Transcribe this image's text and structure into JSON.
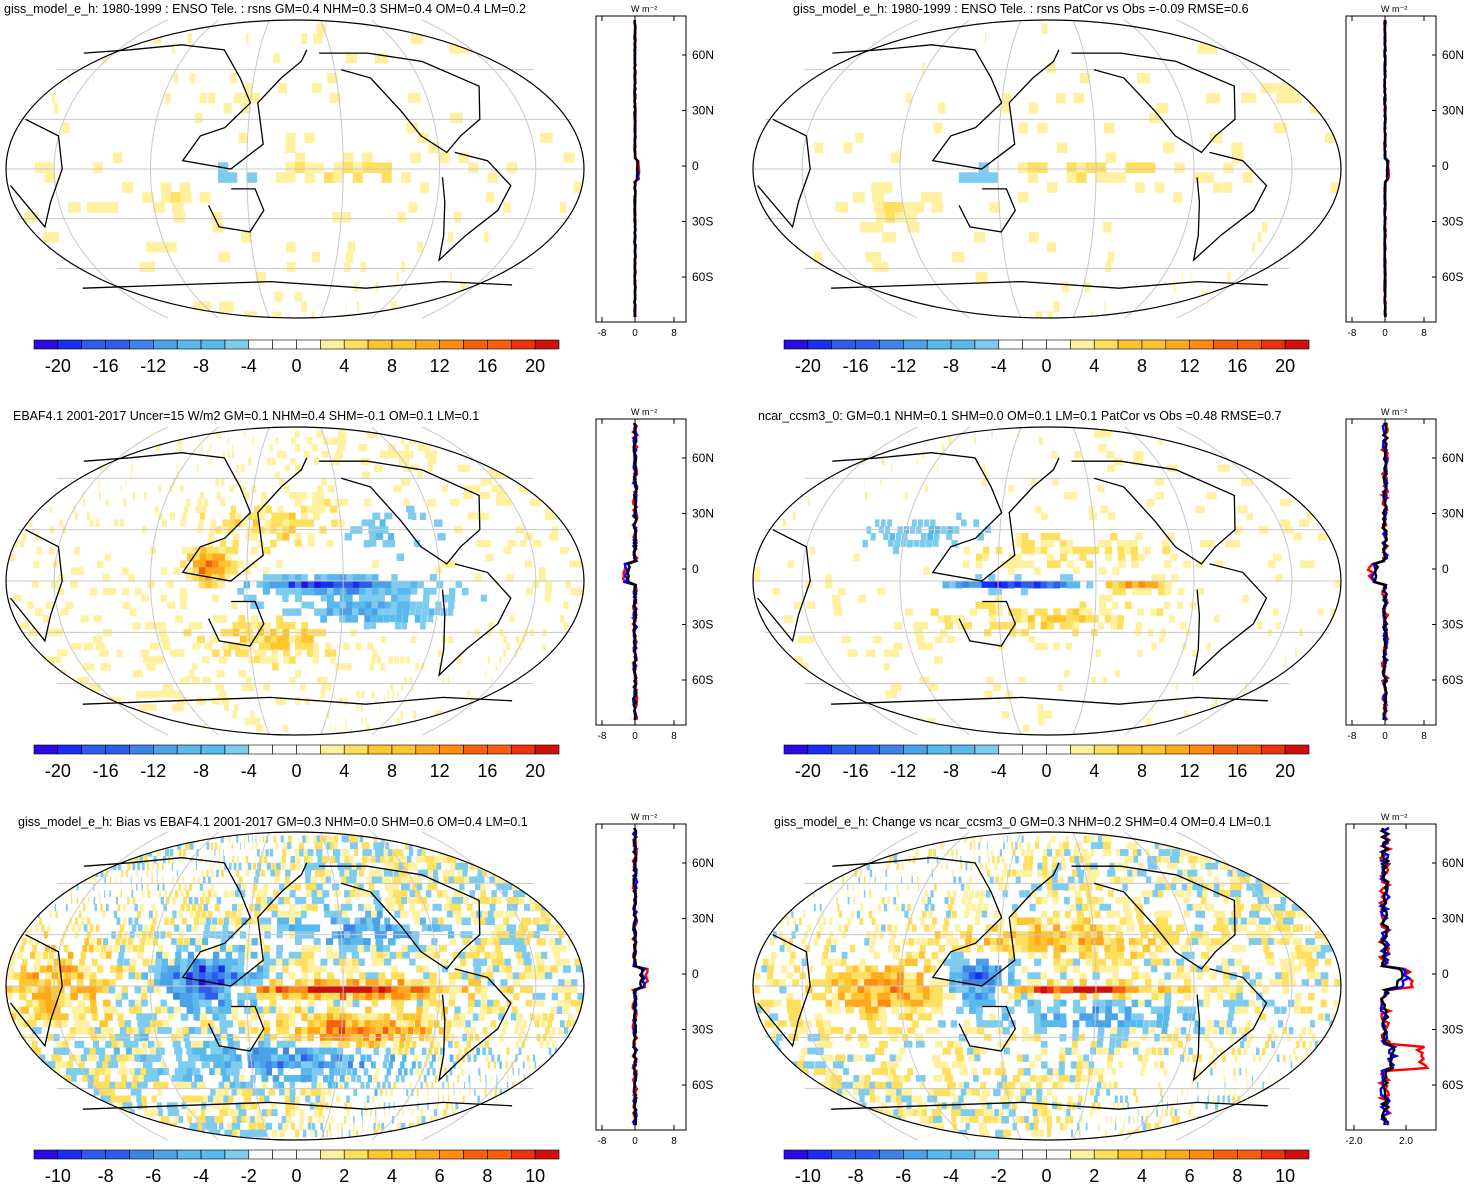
{
  "colors": {
    "scale": [
      "#2a0be0",
      "#1a2ef0",
      "#2f5ce8",
      "#3e84e6",
      "#4ca2e8",
      "#5ab9ec",
      "#7ecbf0",
      "#ffffff",
      "#ffffff",
      "#fff1a0",
      "#ffdf5e",
      "#ffc530",
      "#ffaa1e",
      "#ff8a14",
      "#f5600e",
      "#e8330c",
      "#d0100c"
    ],
    "coast": "#000000",
    "grid": "#c8c8c8",
    "line_red": "#ff0000",
    "line_blue": "#0000ff",
    "line_black": "#000000"
  },
  "panels": [
    {
      "title": "giss_model_e_h: 1980-1999 : ENSO Tele. : rsns GM=0.4 NHM=0.3 SHM=0.4 OM=0.4 LM=0.2",
      "cbar_labels": [
        "-20",
        "-16",
        "-12",
        "-8",
        "-4",
        "0",
        "4",
        "8",
        "12",
        "16",
        "20"
      ],
      "side_unit": "W m⁻²",
      "side_xticks": [
        "-8",
        "0",
        "8"
      ],
      "lat_labels": [
        "60N",
        "30N",
        "0",
        "30S",
        "60S"
      ],
      "pattern": "sparse"
    },
    {
      "title": "giss_model_e_h: 1980-1999 : ENSO Tele. : rsns PatCor vs Obs =-0.09 RMSE=0.6",
      "cbar_labels": [
        "-20",
        "-16",
        "-12",
        "-8",
        "-4",
        "0",
        "4",
        "8",
        "12",
        "16",
        "20"
      ],
      "side_unit": "W m⁻²",
      "side_xticks": [
        "-8",
        "0",
        "8"
      ],
      "lat_labels": [
        "60N",
        "30N",
        "0",
        "30S",
        "60S"
      ],
      "pattern": "sparse"
    },
    {
      "title": "EBAF4.1 2001-2017 Uncer=15 W/m2 GM=0.1 NHM=0.4 SHM=-0.1 OM=0.1 LM=0.1",
      "cbar_labels": [
        "-20",
        "-16",
        "-12",
        "-8",
        "-4",
        "0",
        "4",
        "8",
        "12",
        "16",
        "20"
      ],
      "side_unit": "W m⁻²",
      "side_xticks": [
        "-8",
        "0",
        "8"
      ],
      "lat_labels": [
        "60N",
        "30N",
        "0",
        "30S",
        "60S"
      ],
      "pattern": "obs"
    },
    {
      "title": "ncar_ccsm3_0: GM=0.1 NHM=0.1 SHM=0.0 OM=0.1 LM=0.1 PatCor vs Obs =0.48 RMSE=0.7",
      "cbar_labels": [
        "-20",
        "-16",
        "-12",
        "-8",
        "-4",
        "0",
        "4",
        "8",
        "12",
        "16",
        "20"
      ],
      "side_unit": "W m⁻²",
      "side_xticks": [
        "-8",
        "0",
        "8"
      ],
      "lat_labels": [
        "60N",
        "30N",
        "0",
        "30S",
        "60S"
      ],
      "pattern": "model"
    },
    {
      "title": "giss_model_e_h: Bias vs EBAF4.1 2001-2017 GM=0.3 NHM=0.0 SHM=0.6 OM=0.4 LM=0.1",
      "cbar_labels": [
        "-10",
        "-8",
        "-6",
        "-4",
        "-2",
        "0",
        "2",
        "4",
        "6",
        "8",
        "10"
      ],
      "side_unit": "W m⁻²",
      "side_xticks": [
        "-8",
        "0",
        "8"
      ],
      "lat_labels": [
        "60N",
        "30N",
        "0",
        "30S",
        "60S"
      ],
      "pattern": "bias"
    },
    {
      "title": "giss_model_e_h: Change vs ncar_ccsm3_0 GM=0.3 NHM=0.2 SHM=0.4 OM=0.4 LM=0.1",
      "cbar_labels": [
        "-10",
        "-8",
        "-6",
        "-4",
        "-2",
        "0",
        "2",
        "4",
        "6",
        "8",
        "10"
      ],
      "side_unit": "W m⁻²",
      "side_xticks": [
        "-2.0",
        "2.0"
      ],
      "lat_labels": [
        "60N",
        "30N",
        "0",
        "30S",
        "60S"
      ],
      "pattern": "change"
    }
  ]
}
